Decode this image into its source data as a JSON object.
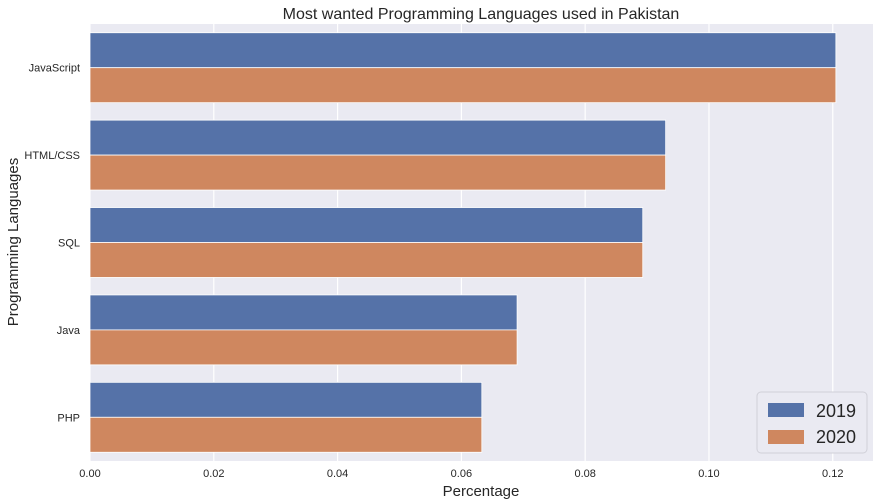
{
  "chart_data": {
    "type": "bar",
    "orientation": "horizontal",
    "title": "Most wanted Programming Languages used in Pakistan",
    "xlabel": "Percentage",
    "ylabel": "Programming Languages",
    "categories": [
      "JavaScript",
      "HTML/CSS",
      "SQL",
      "Java",
      "PHP"
    ],
    "series": [
      {
        "name": "2019",
        "color": "#5572a8",
        "values": [
          0.1205,
          0.093,
          0.0893,
          0.069,
          0.0633
        ]
      },
      {
        "name": "2020",
        "color": "#cf875f",
        "values": [
          0.1205,
          0.093,
          0.0893,
          0.069,
          0.0633
        ]
      }
    ],
    "xlim": [
      0,
      0.1265
    ],
    "xticks": [
      0.0,
      0.02,
      0.04,
      0.06,
      0.08,
      0.1,
      0.12
    ],
    "xtick_labels": [
      "0.00",
      "0.02",
      "0.04",
      "0.06",
      "0.08",
      "0.10",
      "0.12"
    ],
    "grid": true,
    "background": "#eaeaf2",
    "legend_position": "bottom-right"
  }
}
